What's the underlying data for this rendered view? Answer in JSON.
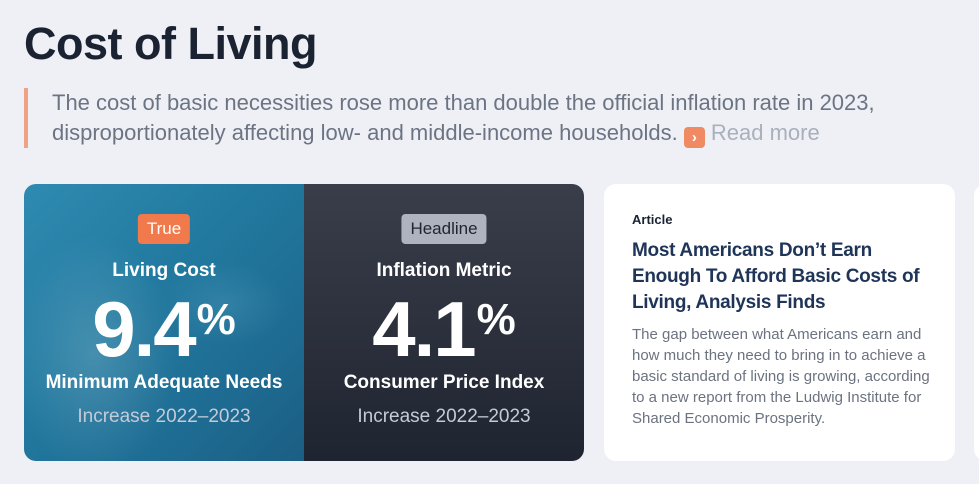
{
  "page": {
    "title": "Cost of Living",
    "intro": "The cost of basic necessities rose more than double the official inflation rate in 2023, disproportionately affecting low- and middle-income households.",
    "read_more": "Read more"
  },
  "stats": [
    {
      "badge": "True",
      "label": "Living Cost",
      "value": "9.4",
      "unit": "%",
      "subtitle": "Minimum Adequate Needs",
      "note": "Increase 2022–2023"
    },
    {
      "badge": "Headline",
      "label": "Inflation Metric",
      "value": "4.1",
      "unit": "%",
      "subtitle": "Consumer Price Index",
      "note": "Increase 2022–2023"
    }
  ],
  "article": {
    "kicker": "Article",
    "headline": "Most Americans Don’t Earn Enough To Afford Basic Costs of Living, Analysis Finds",
    "body": "The gap between what Americans earn and how much they need to bring in to achieve a basic standard of living is growing, according to a new report from the Ludwig Institute for Shared Economic Prosperity."
  },
  "colors": {
    "accent": "#f07a4c",
    "quote_border": "#f0a384",
    "headline_text": "#1e3557"
  },
  "icons": {
    "read_more": "chevron-right-icon"
  }
}
